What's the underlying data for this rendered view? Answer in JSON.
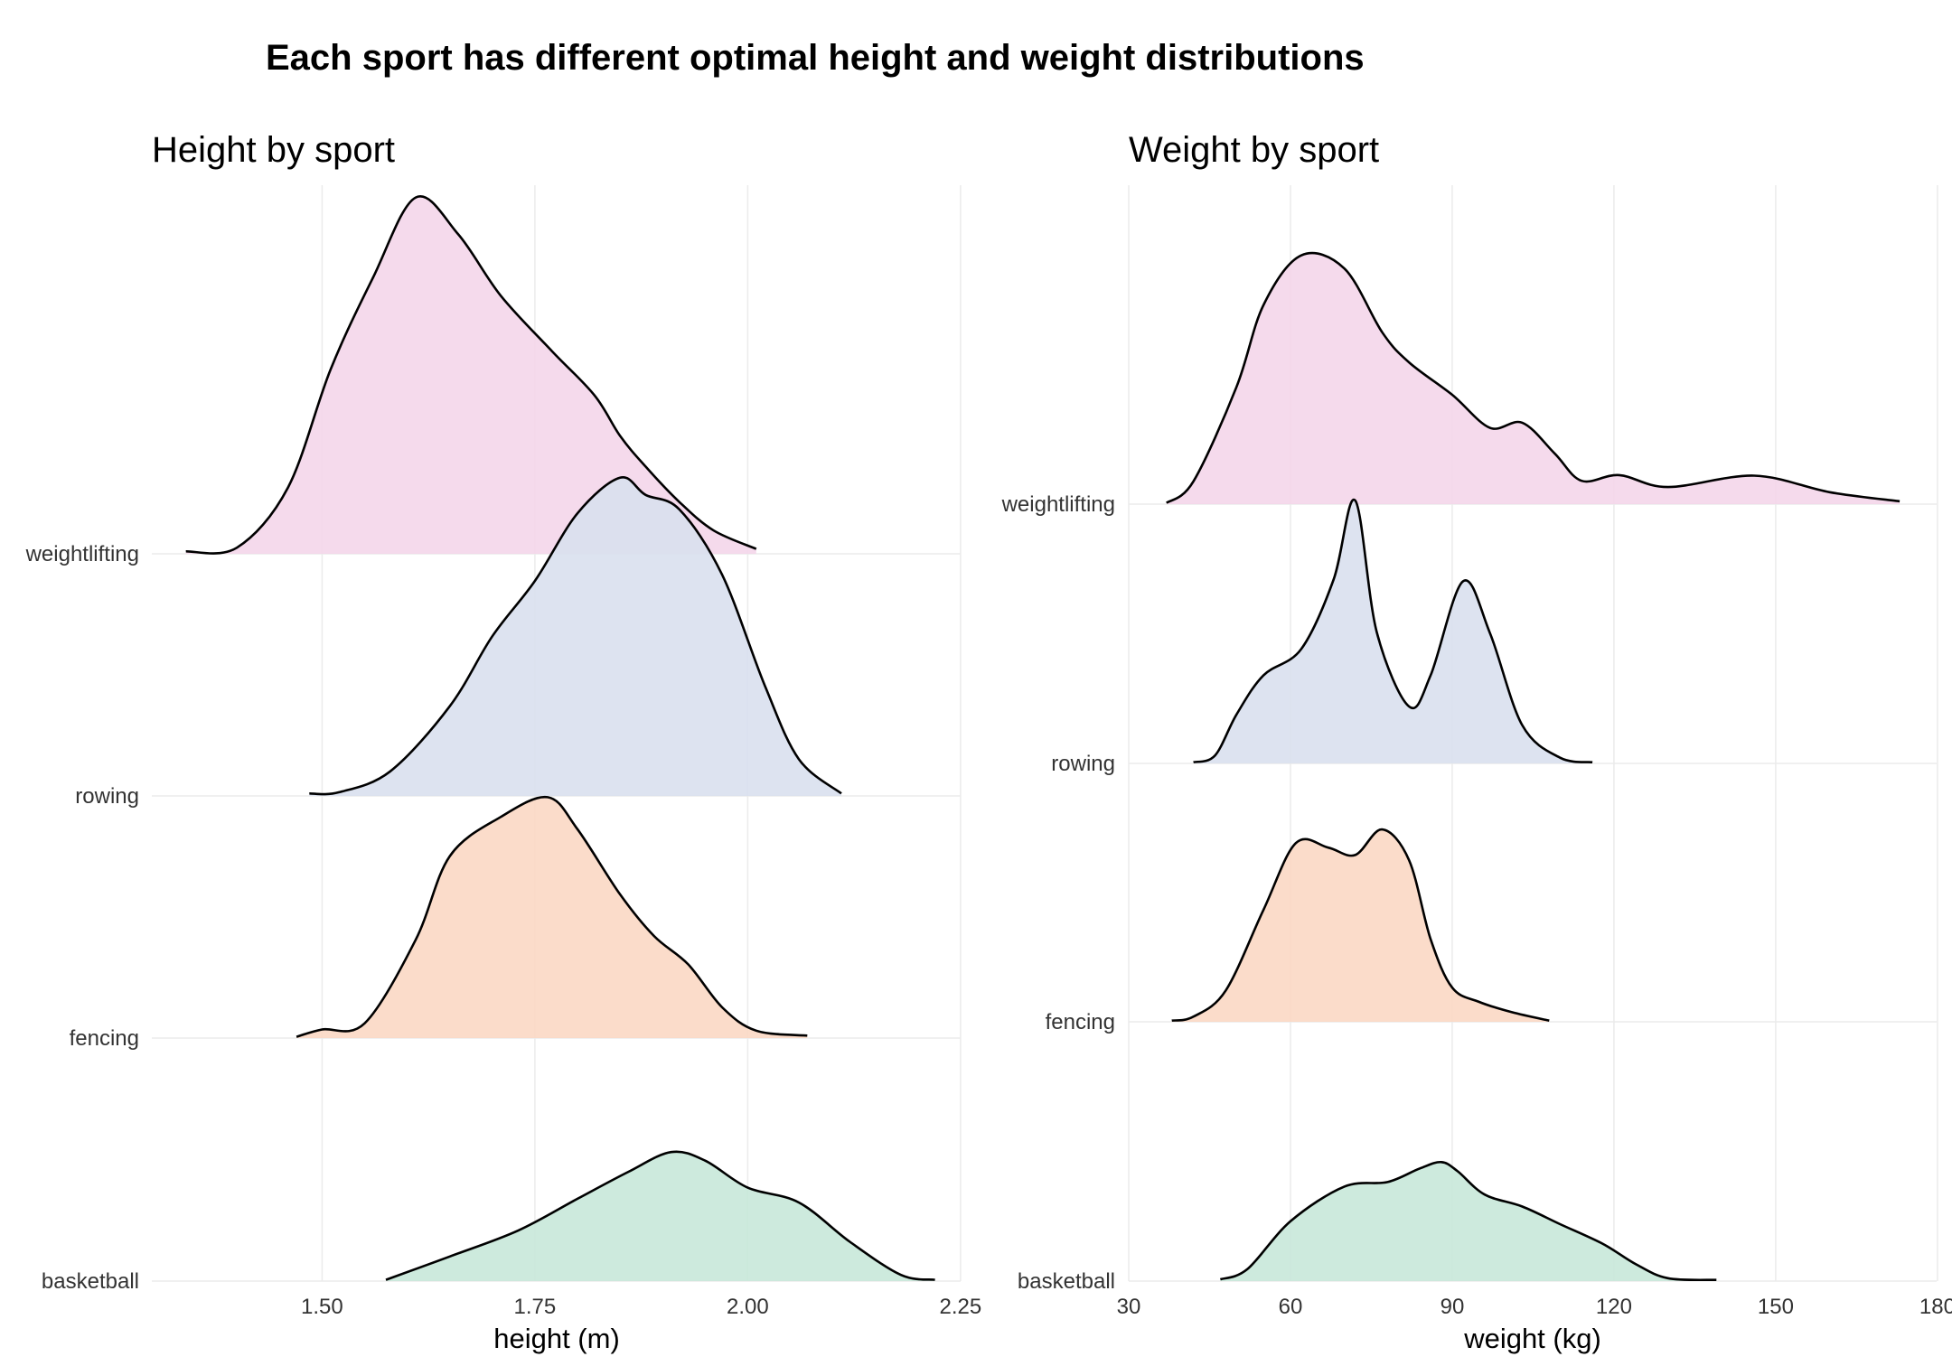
{
  "title": "Each sport has different optimal height and weight distributions",
  "chart_data": [
    {
      "type": "ridgeline",
      "title": "Height by sport",
      "xlabel": "height (m)",
      "ylabel": "",
      "xlim": [
        1.3,
        2.25
      ],
      "xticks": [
        1.5,
        1.75,
        2.0,
        2.25
      ],
      "xtick_labels": [
        "1.50",
        "1.75",
        "2.00",
        "2.25"
      ],
      "grid": true,
      "categories": [
        "basketball",
        "fencing",
        "rowing",
        "weightlifting"
      ],
      "series": [
        {
          "name": "basketball",
          "color": "#c8e8d9",
          "points": [
            [
              1.575,
              0.01
            ],
            [
              1.65,
              0.2
            ],
            [
              1.73,
              0.41
            ],
            [
              1.8,
              0.67
            ],
            [
              1.86,
              0.89
            ],
            [
              1.91,
              1.05
            ],
            [
              1.95,
              0.98
            ],
            [
              2.0,
              0.76
            ],
            [
              2.06,
              0.64
            ],
            [
              2.12,
              0.32
            ],
            [
              2.18,
              0.05
            ],
            [
              2.22,
              0.01
            ]
          ]
        },
        {
          "name": "fencing",
          "color": "#fbd8c4",
          "points": [
            [
              1.47,
              0.01
            ],
            [
              1.5,
              0.07
            ],
            [
              1.55,
              0.12
            ],
            [
              1.61,
              0.8
            ],
            [
              1.65,
              1.48
            ],
            [
              1.71,
              1.8
            ],
            [
              1.765,
              1.96
            ],
            [
              1.8,
              1.7
            ],
            [
              1.85,
              1.17
            ],
            [
              1.89,
              0.83
            ],
            [
              1.93,
              0.6
            ],
            [
              1.97,
              0.25
            ],
            [
              2.01,
              0.06
            ],
            [
              2.07,
              0.02
            ]
          ]
        },
        {
          "name": "rowing",
          "color": "#d9e0ee",
          "points": [
            [
              1.485,
              0.02
            ],
            [
              1.52,
              0.03
            ],
            [
              1.58,
              0.2
            ],
            [
              1.65,
              0.73
            ],
            [
              1.7,
              1.3
            ],
            [
              1.75,
              1.75
            ],
            [
              1.8,
              2.3
            ],
            [
              1.85,
              2.59
            ],
            [
              1.88,
              2.45
            ],
            [
              1.92,
              2.33
            ],
            [
              1.97,
              1.8
            ],
            [
              2.02,
              0.9
            ],
            [
              2.06,
              0.3
            ],
            [
              2.11,
              0.02
            ]
          ]
        },
        {
          "name": "weightlifting",
          "color": "#f4d6ea",
          "points": [
            [
              1.34,
              0.02
            ],
            [
              1.4,
              0.05
            ],
            [
              1.46,
              0.54
            ],
            [
              1.51,
              1.5
            ],
            [
              1.56,
              2.25
            ],
            [
              1.61,
              2.9
            ],
            [
              1.66,
              2.6
            ],
            [
              1.71,
              2.1
            ],
            [
              1.77,
              1.65
            ],
            [
              1.82,
              1.29
            ],
            [
              1.85,
              0.96
            ],
            [
              1.88,
              0.71
            ],
            [
              1.92,
              0.42
            ],
            [
              1.96,
              0.19
            ],
            [
              2.01,
              0.04
            ]
          ]
        }
      ]
    },
    {
      "type": "ridgeline",
      "title": "Weight by sport",
      "xlabel": "weight (kg)",
      "ylabel": "",
      "xlim": [
        30,
        180
      ],
      "xticks": [
        30,
        60,
        90,
        120,
        150,
        180
      ],
      "xtick_labels": [
        "30",
        "60",
        "90",
        "120",
        "150",
        "180"
      ],
      "grid": true,
      "categories": [
        "basketball",
        "fencing",
        "rowing",
        "weightlifting"
      ],
      "series": [
        {
          "name": "basketball",
          "color": "#c8e8d9",
          "points": [
            [
              47,
              0.03
            ],
            [
              52,
              0.21
            ],
            [
              60,
              1.05
            ],
            [
              70,
              1.66
            ],
            [
              78,
              1.74
            ],
            [
              84,
              1.98
            ],
            [
              88,
              2.09
            ],
            [
              91,
              1.93
            ],
            [
              96,
              1.52
            ],
            [
              103,
              1.31
            ],
            [
              110,
              1.0
            ],
            [
              118,
              0.65
            ],
            [
              124,
              0.3
            ],
            [
              130,
              0.05
            ],
            [
              139,
              0.02
            ]
          ]
        },
        {
          "name": "fencing",
          "color": "#fbd8c4",
          "points": [
            [
              38,
              0.02
            ],
            [
              42,
              0.09
            ],
            [
              48,
              0.55
            ],
            [
              55,
              1.97
            ],
            [
              61,
              3.14
            ],
            [
              67,
              3.06
            ],
            [
              72,
              2.93
            ],
            [
              77,
              3.38
            ],
            [
              82,
              2.84
            ],
            [
              86,
              1.45
            ],
            [
              90,
              0.6
            ],
            [
              95,
              0.35
            ],
            [
              101,
              0.17
            ],
            [
              108,
              0.02
            ]
          ]
        },
        {
          "name": "rowing",
          "color": "#d9e0ee",
          "points": [
            [
              42,
              0.02
            ],
            [
              46,
              0.14
            ],
            [
              50,
              0.86
            ],
            [
              55,
              1.55
            ],
            [
              62,
              2.01
            ],
            [
              68,
              3.23
            ],
            [
              72,
              4.62
            ],
            [
              76,
              2.31
            ],
            [
              82,
              1.0
            ],
            [
              86,
              1.55
            ],
            [
              92,
              3.2
            ],
            [
              97,
              2.29
            ],
            [
              103,
              0.67
            ],
            [
              110,
              0.1
            ],
            [
              116,
              0.02
            ]
          ]
        },
        {
          "name": "weightlifting",
          "color": "#f4d6ea",
          "points": [
            [
              37,
              0.02
            ],
            [
              42,
              0.4
            ],
            [
              50,
              2.06
            ],
            [
              55,
              3.5
            ],
            [
              62,
              4.37
            ],
            [
              70,
              4.14
            ],
            [
              77,
              3.02
            ],
            [
              82,
              2.49
            ],
            [
              90,
              1.92
            ],
            [
              97,
              1.34
            ],
            [
              103,
              1.43
            ],
            [
              109,
              0.89
            ],
            [
              114,
              0.41
            ],
            [
              121,
              0.51
            ],
            [
              130,
              0.3
            ],
            [
              146,
              0.5
            ],
            [
              160,
              0.21
            ],
            [
              173,
              0.05
            ]
          ]
        }
      ]
    }
  ]
}
